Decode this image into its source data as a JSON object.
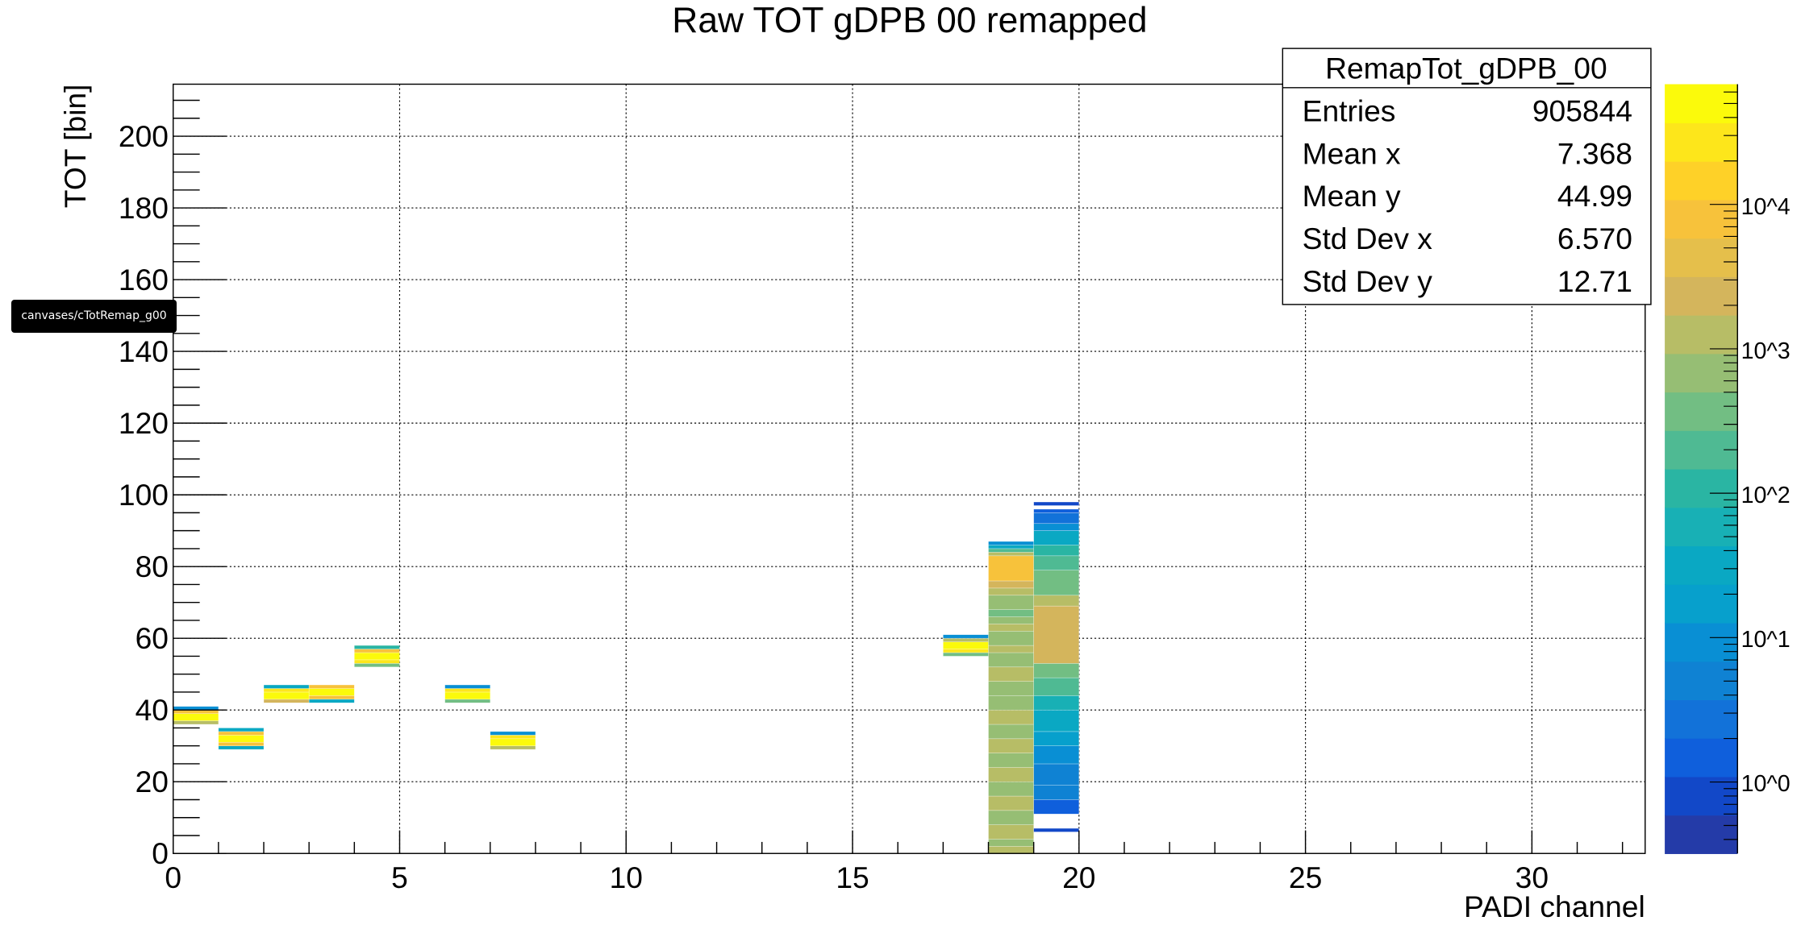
{
  "chart_data": {
    "type": "heatmap",
    "title": "Raw TOT gDPB 00 remapped",
    "xlabel": "PADI channel",
    "ylabel": "TOT [bin]",
    "xlim": [
      0,
      32.5
    ],
    "ylim": [
      0,
      214.5
    ],
    "x_ticks": [
      "0",
      "5",
      "10",
      "15",
      "20",
      "25",
      "30"
    ],
    "y_ticks": [
      "0",
      "20",
      "40",
      "60",
      "80",
      "100",
      "120",
      "140",
      "160",
      "180",
      "200"
    ],
    "grid": true,
    "z_scale": "log",
    "zlim": [
      0.32,
      68000
    ],
    "z_ticks": [
      "10^0",
      "10^1",
      "10^2",
      "10^3",
      "10^4"
    ],
    "palette": [
      "#243ba8",
      "#1248c8",
      "#0f5fdc",
      "#1272d9",
      "#0f82d3",
      "#098fd4",
      "#07a0cc",
      "#0aa8c3",
      "#18b0b5",
      "#2ab5a3",
      "#4fba93",
      "#72be83",
      "#96be74",
      "#b7bd66",
      "#d4b55c",
      "#e5bf4b",
      "#f7c23b",
      "#fed128",
      "#fde61b",
      "#fbfa0b"
    ],
    "cells_note_format": "channel: [[tot_low, tot_high, counts], ...]",
    "cells": {
      "0": [
        [
          36,
          37,
          1500
        ],
        [
          37,
          39,
          60000
        ],
        [
          39,
          40,
          9000
        ],
        [
          40,
          41,
          8
        ]
      ],
      "1": [
        [
          29,
          30,
          40
        ],
        [
          30,
          31,
          8000
        ],
        [
          31,
          33,
          60000
        ],
        [
          33,
          34,
          8000
        ],
        [
          34,
          35,
          40
        ]
      ],
      "2": [
        [
          42,
          43,
          2000
        ],
        [
          43,
          45,
          50000
        ],
        [
          45,
          46,
          20000
        ],
        [
          46,
          47,
          30
        ]
      ],
      "3": [
        [
          42,
          43,
          40
        ],
        [
          43,
          44,
          6000
        ],
        [
          44,
          46,
          60000
        ],
        [
          46,
          47,
          7000
        ]
      ],
      "4": [
        [
          52,
          53,
          300
        ],
        [
          53,
          54,
          20000
        ],
        [
          54,
          56,
          60000
        ],
        [
          56,
          57,
          7000
        ],
        [
          57,
          58,
          80
        ]
      ],
      "6": [
        [
          42,
          43,
          500
        ],
        [
          43,
          45,
          60000
        ],
        [
          45,
          46,
          20000
        ],
        [
          46,
          47,
          10
        ]
      ],
      "7": [
        [
          29,
          30,
          1200
        ],
        [
          30,
          32,
          60000
        ],
        [
          32,
          33,
          20000
        ],
        [
          33,
          34,
          10
        ]
      ],
      "17": [
        [
          55,
          56,
          500
        ],
        [
          56,
          57,
          20000
        ],
        [
          57,
          59,
          60000
        ],
        [
          59,
          60,
          1000
        ],
        [
          60,
          61,
          10
        ]
      ],
      "18": [
        [
          0,
          2,
          1500
        ],
        [
          2,
          4,
          900
        ],
        [
          4,
          8,
          1500
        ],
        [
          8,
          12,
          900
        ],
        [
          12,
          16,
          1500
        ],
        [
          16,
          20,
          900
        ],
        [
          20,
          24,
          1500
        ],
        [
          24,
          28,
          900
        ],
        [
          28,
          32,
          1300
        ],
        [
          32,
          36,
          900
        ],
        [
          36,
          40,
          1500
        ],
        [
          40,
          44,
          900
        ],
        [
          44,
          48,
          800
        ],
        [
          48,
          52,
          1300
        ],
        [
          52,
          56,
          900
        ],
        [
          56,
          58,
          1400
        ],
        [
          58,
          62,
          900
        ],
        [
          62,
          64,
          1500
        ],
        [
          64,
          66,
          900
        ],
        [
          66,
          68,
          400
        ],
        [
          68,
          72,
          900
        ],
        [
          72,
          74,
          1400
        ],
        [
          74,
          76,
          3000
        ],
        [
          76,
          83,
          7000
        ],
        [
          83,
          84,
          1500
        ],
        [
          84,
          85,
          250
        ],
        [
          85,
          86,
          30
        ],
        [
          86,
          87,
          8
        ]
      ],
      "19": [
        [
          6,
          7,
          1
        ],
        [
          11,
          15,
          2
        ],
        [
          15,
          19,
          4
        ],
        [
          19,
          25,
          6
        ],
        [
          25,
          30,
          10
        ],
        [
          30,
          34,
          20
        ],
        [
          34,
          40,
          40
        ],
        [
          40,
          44,
          60
        ],
        [
          44,
          49,
          200
        ],
        [
          49,
          53,
          500
        ],
        [
          53,
          69,
          2000
        ],
        [
          69,
          72,
          1000
        ],
        [
          72,
          79,
          400
        ],
        [
          79,
          83,
          200
        ],
        [
          83,
          86,
          80
        ],
        [
          86,
          90,
          40
        ],
        [
          90,
          92,
          10
        ],
        [
          92,
          95,
          3
        ],
        [
          95,
          96,
          1.5
        ],
        [
          97,
          98,
          1
        ]
      ]
    }
  },
  "stats": {
    "title": "RemapTot_gDPB_00",
    "rows": [
      {
        "label": "Entries",
        "value": "905844"
      },
      {
        "label": "Mean x",
        "value": "7.368"
      },
      {
        "label": "Mean y",
        "value": "44.99"
      },
      {
        "label": "Std Dev x",
        "value": "6.570"
      },
      {
        "label": "Std Dev y",
        "value": "12.71"
      }
    ]
  },
  "tooltip": "canvases/cTotRemap_g00"
}
